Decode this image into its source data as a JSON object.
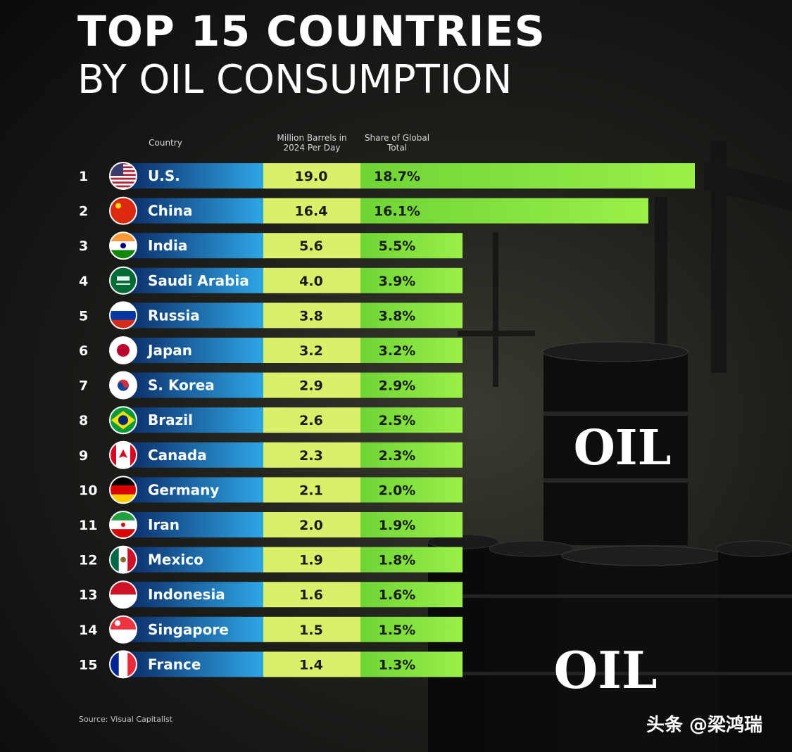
{
  "title": "TOP 15 COUNTRIES",
  "subtitle": "BY OIL CONSUMPTION",
  "headers": {
    "country": "Country",
    "barrels": "Million Barrels in 2024 Per Day",
    "share": "Share of Global Total"
  },
  "source": "Source: Visual Capitalist",
  "watermark": "头条 @梁鸿瑞",
  "barrel_label": "OIL",
  "chart_data": {
    "type": "bar",
    "title": "TOP 15 COUNTRIES BY OIL CONSUMPTION",
    "categories": [
      "U.S.",
      "China",
      "India",
      "Saudi Arabia",
      "Russia",
      "Japan",
      "S. Korea",
      "Brazil",
      "Canada",
      "Germany",
      "Iran",
      "Mexico",
      "Indonesia",
      "Singapore",
      "France"
    ],
    "ranks": [
      "1",
      "2",
      "3",
      "4",
      "5",
      "6",
      "7",
      "8",
      "9",
      "10",
      "11",
      "12",
      "13",
      "14",
      "15"
    ],
    "series": [
      {
        "name": "Million Barrels in 2024 Per Day",
        "values": [
          19.0,
          16.4,
          5.6,
          4.0,
          3.8,
          3.2,
          2.9,
          2.6,
          2.3,
          2.1,
          2.0,
          1.9,
          1.6,
          1.5,
          1.4
        ]
      },
      {
        "name": "Share of Global Total",
        "values": [
          18.7,
          16.1,
          5.5,
          3.9,
          3.8,
          3.2,
          2.9,
          2.5,
          2.3,
          2.0,
          1.9,
          1.8,
          1.6,
          1.5,
          1.3
        ]
      }
    ],
    "barrel_labels": [
      "19.0",
      "16.4",
      "5.6",
      "4.0",
      "3.8",
      "3.2",
      "2.9",
      "2.6",
      "2.3",
      "2.1",
      "2.0",
      "1.9",
      "1.6",
      "1.5",
      "1.4"
    ],
    "share_labels": [
      "18.7%",
      "16.1%",
      "5.5%",
      "3.9%",
      "3.8%",
      "3.2%",
      "2.9%",
      "2.5%",
      "2.3%",
      "2.0%",
      "1.9%",
      "1.8%",
      "1.6%",
      "1.5%",
      "1.3%"
    ],
    "flag_icons": [
      "us-flag-icon",
      "china-flag-icon",
      "india-flag-icon",
      "saudi-arabia-flag-icon",
      "russia-flag-icon",
      "japan-flag-icon",
      "south-korea-flag-icon",
      "brazil-flag-icon",
      "canada-flag-icon",
      "germany-flag-icon",
      "iran-flag-icon",
      "mexico-flag-icon",
      "indonesia-flag-icon",
      "singapore-flag-icon",
      "france-flag-icon"
    ],
    "colors": {
      "country_bar_start": "#0a2a66",
      "country_bar_end": "#2fa6e6",
      "value_col": "#d9f06a",
      "share_bar": "#84e43c"
    }
  }
}
